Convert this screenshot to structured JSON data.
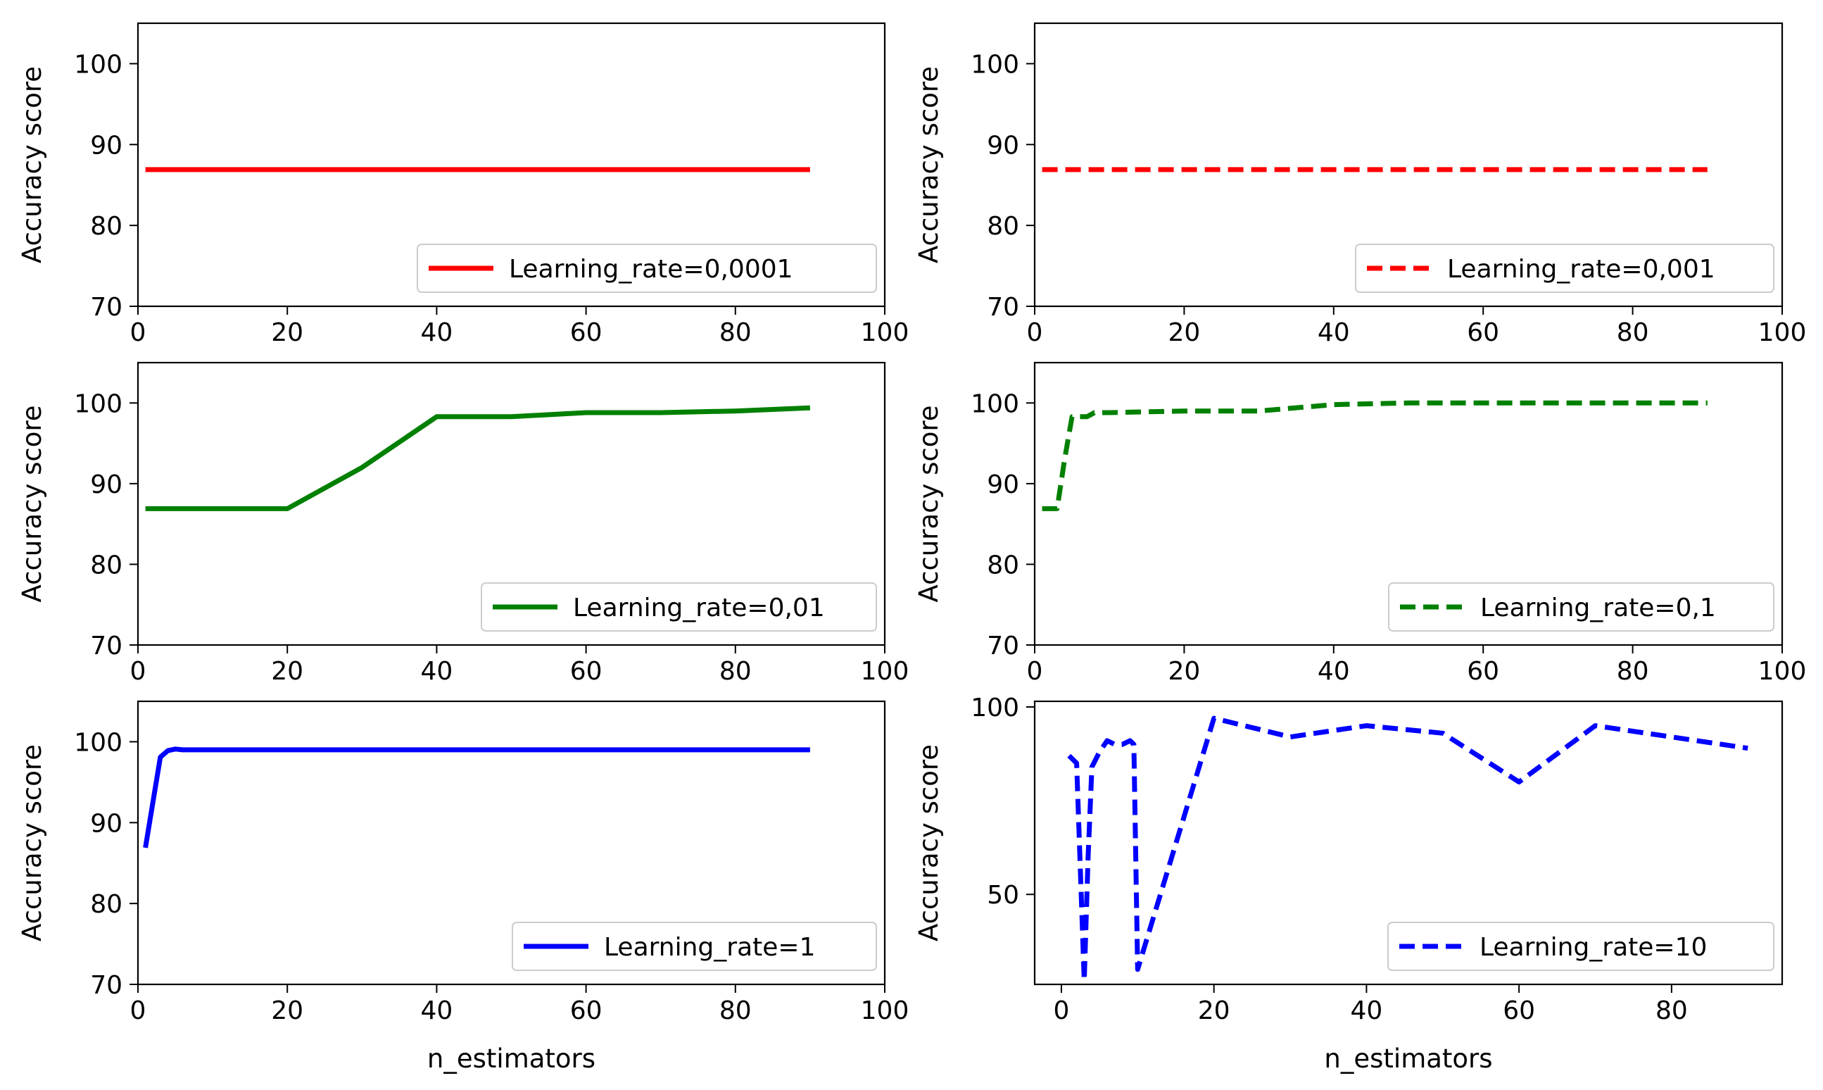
{
  "chart_data": [
    {
      "type": "line",
      "ylabel": "Accuracy score",
      "xlabel": "",
      "xlim": [
        0,
        100
      ],
      "ylim": [
        70,
        105
      ],
      "xticks": [
        0,
        20,
        40,
        60,
        80,
        100
      ],
      "yticks": [
        70,
        80,
        90,
        100
      ],
      "legend_position": "lower-right",
      "series": [
        {
          "name": "Learning_rate=0,0001",
          "color": "#ff0000",
          "dash": "solid",
          "x": [
            1,
            90
          ],
          "y": [
            86.9,
            86.9
          ]
        }
      ]
    },
    {
      "type": "line",
      "ylabel": "Accuracy score",
      "xlabel": "",
      "xlim": [
        0,
        100
      ],
      "ylim": [
        70,
        105
      ],
      "xticks": [
        0,
        20,
        40,
        60,
        80,
        100
      ],
      "yticks": [
        70,
        80,
        90,
        100
      ],
      "legend_position": "lower-right",
      "series": [
        {
          "name": "Learning_rate=0,001",
          "color": "#ff0000",
          "dash": "dashed",
          "x": [
            1,
            90
          ],
          "y": [
            86.9,
            86.9
          ]
        }
      ]
    },
    {
      "type": "line",
      "ylabel": "Accuracy score",
      "xlabel": "",
      "xlim": [
        0,
        100
      ],
      "ylim": [
        70,
        105
      ],
      "xticks": [
        0,
        20,
        40,
        60,
        80,
        100
      ],
      "yticks": [
        70,
        80,
        90,
        100
      ],
      "legend_position": "lower-right",
      "series": [
        {
          "name": "Learning_rate=0,01",
          "color": "#008000",
          "dash": "solid",
          "x": [
            1,
            10,
            20,
            30,
            40,
            50,
            60,
            70,
            80,
            90
          ],
          "y": [
            86.9,
            86.9,
            86.9,
            92.0,
            98.3,
            98.3,
            98.8,
            98.8,
            99.0,
            99.4
          ]
        }
      ]
    },
    {
      "type": "line",
      "ylabel": "Accuracy score",
      "xlabel": "",
      "xlim": [
        0,
        100
      ],
      "ylim": [
        70,
        105
      ],
      "xticks": [
        0,
        20,
        40,
        60,
        80,
        100
      ],
      "yticks": [
        70,
        80,
        90,
        100
      ],
      "legend_position": "lower-right",
      "series": [
        {
          "name": "Learning_rate=0,1",
          "color": "#008000",
          "dash": "dashed",
          "x": [
            1,
            2,
            3,
            4,
            5,
            6,
            7,
            8,
            9,
            10,
            20,
            30,
            40,
            50,
            60,
            70,
            80,
            90
          ],
          "y": [
            86.9,
            86.9,
            86.9,
            93.0,
            98.3,
            98.3,
            98.3,
            98.8,
            98.8,
            98.8,
            99.0,
            99.0,
            99.8,
            100.0,
            100.0,
            100.0,
            100.0,
            100.0
          ]
        }
      ]
    },
    {
      "type": "line",
      "ylabel": "Accuracy score",
      "xlabel": "n_estimators",
      "xlim": [
        0,
        100
      ],
      "ylim": [
        70,
        105
      ],
      "xticks": [
        0,
        20,
        40,
        60,
        80,
        100
      ],
      "yticks": [
        70,
        80,
        90,
        100
      ],
      "legend_position": "lower-right",
      "series": [
        {
          "name": "Learning_rate=1",
          "color": "#0000ff",
          "dash": "solid",
          "x": [
            1,
            2,
            3,
            4,
            5,
            6,
            7,
            8,
            9,
            10,
            20,
            30,
            40,
            50,
            60,
            70,
            80,
            90
          ],
          "y": [
            86.9,
            92.5,
            98.1,
            98.9,
            99.1,
            99.0,
            99.0,
            99.0,
            99.0,
            99.0,
            99.0,
            99.0,
            99.0,
            99.0,
            99.0,
            99.0,
            99.0,
            99.0
          ]
        }
      ]
    },
    {
      "type": "line",
      "ylabel": "Accuracy score",
      "xlabel": "n_estimators",
      "xlim": [
        -3.5,
        94.5
      ],
      "ylim": [
        26,
        101.5
      ],
      "xticks": [
        0,
        20,
        40,
        60,
        80
      ],
      "yticks": [
        50,
        100
      ],
      "legend_position": "lower-right",
      "series": [
        {
          "name": "Learning_rate=10",
          "color": "#0000ff",
          "dash": "dashed",
          "x": [
            1,
            2,
            3,
            3.5,
            4,
            5,
            6,
            7,
            8,
            9,
            9.5,
            10,
            20,
            30,
            40,
            50,
            60,
            70,
            80,
            90
          ],
          "y": [
            87,
            85,
            27,
            60,
            84,
            88,
            91,
            90,
            90,
            91,
            90,
            30,
            97,
            92,
            95,
            93,
            80,
            95,
            92,
            89
          ]
        }
      ]
    }
  ]
}
